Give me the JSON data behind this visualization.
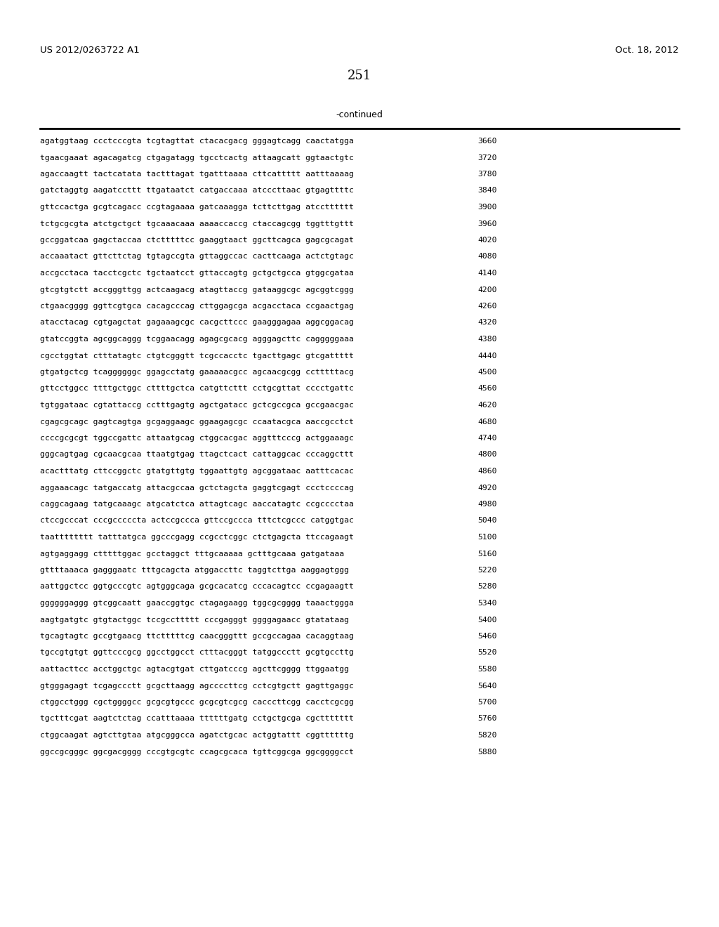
{
  "header_left": "US 2012/0263722 A1",
  "header_right": "Oct. 18, 2012",
  "page_number": "251",
  "continued_label": "-continued",
  "background_color": "#ffffff",
  "text_color": "#000000",
  "font_size_header": 9.5,
  "font_size_page": 13,
  "font_size_continued": 9.0,
  "font_size_sequence": 8.2,
  "sequence_lines": [
    [
      "agatggtaag ccctcccgta tcgtagttat ctacacgacg gggagtcagg caactatgga",
      "3660"
    ],
    [
      "tgaacgaaat agacagatcg ctgagatagg tgcctcactg attaagcatt ggtaactgtc",
      "3720"
    ],
    [
      "agaccaagtt tactcatata tactttagat tgatttaaaa cttcattttt aatttaaaag",
      "3780"
    ],
    [
      "gatctaggtg aagatccttt ttgataatct catgaccaaa atcccttaac gtgagttttc",
      "3840"
    ],
    [
      "gttccactga gcgtcagacc ccgtagaaaa gatcaaagga tcttcttgag atcctttttt",
      "3900"
    ],
    [
      "tctgcgcgta atctgctgct tgcaaacaaa aaaaccaccg ctaccagcgg tggtttgttt",
      "3960"
    ],
    [
      "gccggatcaa gagctaccaa ctctttttcc gaaggtaact ggcttcagca gagcgcagat",
      "4020"
    ],
    [
      "accaaatact gttcttctag tgtagccgta gttaggccac cacttcaaga actctgtagc",
      "4080"
    ],
    [
      "accgcctaca tacctcgctc tgctaatcct gttaccagtg gctgctgcca gtggcgataa",
      "4140"
    ],
    [
      "gtcgtgtctt accgggttgg actcaagacg atagttaccg gataaggcgc agcggtcggg",
      "4200"
    ],
    [
      "ctgaacgggg ggttcgtgca cacagcccag cttggagcga acgacctaca ccgaactgag",
      "4260"
    ],
    [
      "atacctacag cgtgagctat gagaaagcgc cacgcttccc gaagggagaa aggcggacag",
      "4320"
    ],
    [
      "gtatccggta agcggcaggg tcggaacagg agagcgcacg agggagcttc cagggggaaa",
      "4380"
    ],
    [
      "cgcctggtat ctttatagtc ctgtcgggtt tcgccacctc tgacttgagc gtcgattttt",
      "4440"
    ],
    [
      "gtgatgctcg tcaggggggc ggagcctatg gaaaaacgcc agcaacgcgg cctttttacg",
      "4500"
    ],
    [
      "gttcctggcc ttttgctggc cttttgctca catgttcttt cctgcgttat cccctgattc",
      "4560"
    ],
    [
      "tgtggataac cgtattaccg cctttgagtg agctgatacc gctcgccgca gccgaacgac",
      "4620"
    ],
    [
      "cgagcgcagc gagtcagtga gcgaggaagc ggaagagcgc ccaatacgca aaccgcctct",
      "4680"
    ],
    [
      "ccccgcgcgt tggccgattc attaatgcag ctggcacgac aggtttcccg actggaaagc",
      "4740"
    ],
    [
      "gggcagtgag cgcaacgcaa ttaatgtgag ttagctcact cattaggcac cccaggcttt",
      "4800"
    ],
    [
      "acactttatg cttccggctc gtatgttgtg tggaattgtg agcggataac aatttcacac",
      "4860"
    ],
    [
      "aggaaacagc tatgaccatg attacgccaa gctctagcta gaggtcgagt ccctccccag",
      "4920"
    ],
    [
      "caggcagaag tatgcaaagc atgcatctca attagtcagc aaccatagtc ccgcccctaa",
      "4980"
    ],
    [
      "ctccgcccat cccgcccccta actccgccca gttccgccca tttctcgccc catggtgac",
      "5040"
    ],
    [
      "taatttttttt tatttatgca ggcccgagg ccgcctcggc ctctgagcta ttccagaagt",
      "5100"
    ],
    [
      "agtgaggagg ctttttggac gcctaggct tttgcaaaaa gctttgcaaa gatgataaa",
      "5160"
    ],
    [
      "gttttaaaca gagggaatc tttgcagcta atggaccttc taggtcttga aaggagtggg",
      "5220"
    ],
    [
      "aattggctcc ggtgcccgtc agtgggcaga gcgcacatcg cccacagtcc ccgagaagtt",
      "5280"
    ],
    [
      "ggggggaggg gtcggcaatt gaaccggtgc ctagagaagg tggcgcgggg taaactggga",
      "5340"
    ],
    [
      "aagtgatgtc gtgtactggc tccgccttttt cccgagggt ggggagaacc gtatataag",
      "5400"
    ],
    [
      "tgcagtagtc gccgtgaacg ttctttttcg caacgggttt gccgccagaa cacaggtaag",
      "5460"
    ],
    [
      "tgccgtgtgt ggttcccgcg ggcctggcct ctttacgggt tatggccctt gcgtgccttg",
      "5520"
    ],
    [
      "aattacttcc acctggctgc agtacgtgat cttgatcccg agcttcgggg ttggaatgg",
      "5580"
    ],
    [
      "gtgggagagt tcgagccctt gcgcttaagg agccccttcg cctcgtgctt gagttgaggc",
      "5640"
    ],
    [
      "ctggcctggg cgctggggcc gcgcgtgccc gcgcgtcgcg cacccttcgg cacctcgcgg",
      "5700"
    ],
    [
      "tgctttcgat aagtctctag ccatttaaaa ttttttgatg cctgctgcga cgcttttttt",
      "5760"
    ],
    [
      "ctggcaagat agtcttgtaa atgcgggcca agatctgcac actggtattt cggttttttg",
      "5820"
    ],
    [
      "ggccgcgggc ggcgacgggg cccgtgcgtc ccagcgcaca tgttcggcga ggcggggcct",
      "5880"
    ]
  ]
}
